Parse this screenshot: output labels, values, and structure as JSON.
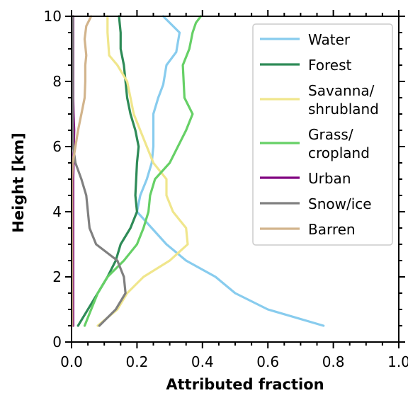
{
  "chart_data": {
    "type": "line",
    "xlabel": "Attributed fraction",
    "ylabel": "Height [km]",
    "xlim": [
      0.0,
      1.0
    ],
    "ylim": [
      0,
      10
    ],
    "xticks": [
      0.0,
      0.2,
      0.4,
      0.6,
      0.8,
      1.0
    ],
    "xtick_labels": [
      "0.0",
      "0.2",
      "0.4",
      "0.6",
      "0.8",
      "1.0"
    ],
    "yticks": [
      0,
      2,
      4,
      6,
      8,
      10
    ],
    "ytick_labels": [
      "0",
      "2",
      "4",
      "6",
      "8",
      "10"
    ],
    "grid": false,
    "legend_position": "top-right",
    "series": [
      {
        "name": "Water",
        "color": "#88ccee",
        "x": [
          0.77,
          0.6,
          0.5,
          0.44,
          0.35,
          0.29,
          0.2,
          0.21,
          0.23,
          0.245,
          0.25,
          0.25,
          0.265,
          0.28,
          0.29,
          0.32,
          0.33,
          0.31,
          0.28
        ],
        "y": [
          0.5,
          1.0,
          1.5,
          2.0,
          2.5,
          3.0,
          4.0,
          4.5,
          5.0,
          5.5,
          6.0,
          7.0,
          7.5,
          7.9,
          8.5,
          8.9,
          9.5,
          9.7,
          10.0
        ]
      },
      {
        "name": "Forest",
        "color": "#2e8b57",
        "x": [
          0.02,
          0.05,
          0.08,
          0.11,
          0.135,
          0.15,
          0.18,
          0.2,
          0.195,
          0.2,
          0.205,
          0.195,
          0.18,
          0.17,
          0.16,
          0.15,
          0.15,
          0.145
        ],
        "y": [
          0.5,
          1.0,
          1.5,
          2.0,
          2.5,
          3.0,
          3.5,
          4.0,
          4.5,
          5.5,
          6.0,
          6.5,
          7.0,
          7.5,
          8.5,
          9.0,
          9.5,
          10.0
        ]
      },
      {
        "name": "Savanna/\nshrubland",
        "color": "#f0e68c",
        "x": [
          0.08,
          0.14,
          0.17,
          0.22,
          0.3,
          0.355,
          0.35,
          0.31,
          0.29,
          0.29,
          0.25,
          0.21,
          0.19,
          0.18,
          0.17,
          0.14,
          0.115,
          0.11,
          0.11
        ],
        "y": [
          0.5,
          1.0,
          1.5,
          2.0,
          2.5,
          3.0,
          3.5,
          4.0,
          4.5,
          5.0,
          5.5,
          6.5,
          7.0,
          7.5,
          8.0,
          8.5,
          8.8,
          9.5,
          10.0
        ]
      },
      {
        "name": "Grass/\ncropland",
        "color": "#66d066",
        "x": [
          0.04,
          0.06,
          0.08,
          0.11,
          0.16,
          0.2,
          0.22,
          0.235,
          0.24,
          0.255,
          0.3,
          0.35,
          0.37,
          0.345,
          0.34,
          0.36,
          0.37,
          0.38,
          0.395
        ],
        "y": [
          0.5,
          1.0,
          1.5,
          2.0,
          2.5,
          3.0,
          3.5,
          4.0,
          4.5,
          5.0,
          5.5,
          6.5,
          7.0,
          7.5,
          8.5,
          9.0,
          9.5,
          9.8,
          10.0
        ]
      },
      {
        "name": "Urban",
        "color": "#800080",
        "x": [
          0.005,
          0.005,
          0.005,
          0.005,
          0.005,
          0.005,
          0.005,
          0.006,
          0.007,
          0.008,
          0.006,
          0.005,
          0.005,
          0.005,
          0.005,
          0.005,
          0.005
        ],
        "y": [
          0.5,
          1.0,
          2.0,
          3.0,
          4.0,
          4.5,
          5.0,
          5.5,
          6.0,
          6.5,
          7.0,
          7.5,
          8.0,
          8.5,
          9.0,
          9.5,
          10.0
        ]
      },
      {
        "name": "Snow/ice",
        "color": "#808080",
        "x": [
          0.085,
          0.135,
          0.165,
          0.16,
          0.14,
          0.075,
          0.055,
          0.05,
          0.045,
          0.03,
          0.012,
          0.005,
          0.004,
          0.004,
          0.004,
          0.004,
          0.004
        ],
        "y": [
          0.5,
          1.0,
          1.5,
          2.0,
          2.5,
          3.0,
          3.5,
          4.0,
          4.5,
          5.0,
          5.5,
          6.0,
          7.0,
          8.0,
          9.0,
          9.5,
          10.0
        ]
      },
      {
        "name": "Barren",
        "color": "#d2b48c",
        "x": [
          0.002,
          0.002,
          0.002,
          0.002,
          0.002,
          0.002,
          0.002,
          0.004,
          0.012,
          0.02,
          0.03,
          0.04,
          0.042,
          0.042,
          0.045,
          0.04,
          0.045,
          0.055,
          0.06
        ],
        "y": [
          0.5,
          1.0,
          2.0,
          3.0,
          4.0,
          4.5,
          5.0,
          5.5,
          6.0,
          6.5,
          7.0,
          7.5,
          8.0,
          8.5,
          8.8,
          9.3,
          9.7,
          9.9,
          10.0
        ]
      }
    ]
  }
}
